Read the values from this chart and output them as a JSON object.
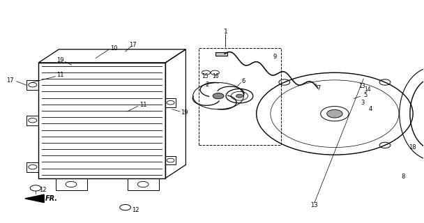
{
  "bg_color": "#ffffff",
  "line_color": "#000000",
  "fig_width": 6.08,
  "fig_height": 3.2,
  "dpi": 100
}
